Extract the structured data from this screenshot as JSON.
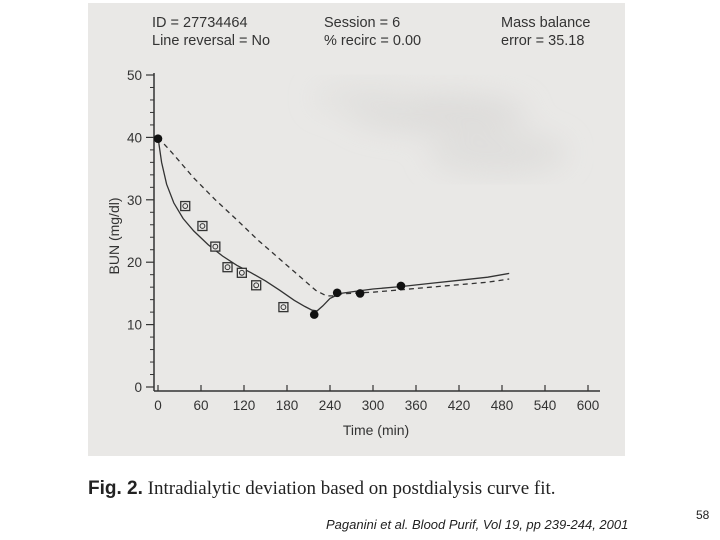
{
  "header": {
    "id_line": "ID = 27734464",
    "line_reversal": "Line reversal = No",
    "session": "Session = 6",
    "recirc": "% recirc = 0.00",
    "mass_balance": "Mass balance",
    "mass_balance_error": "error = 35.18"
  },
  "caption": {
    "label": "Fig. 2.",
    "text": "Intradialytic deviation based on postdialysis curve fit."
  },
  "citation": "Paganini et al. Blood Purif, Vol 19, pp 239-244, 2001",
  "page_number": "58",
  "chart_data": {
    "type": "line",
    "title": "",
    "xlabel": "Time (min)",
    "ylabel": "BUN (mg/dl)",
    "xlim": [
      0,
      600
    ],
    "ylim": [
      0,
      50
    ],
    "x_ticks": [
      0,
      60,
      120,
      180,
      240,
      300,
      360,
      420,
      480,
      540,
      600
    ],
    "y_ticks": [
      0,
      10,
      20,
      30,
      40,
      50
    ],
    "grid": false,
    "colors": {
      "ink": "#333333",
      "panel": "#e9e8e6"
    },
    "series": [
      {
        "name": "solid fit",
        "style": "solid",
        "points": [
          [
            0,
            40
          ],
          [
            5,
            36
          ],
          [
            12,
            32.5
          ],
          [
            22,
            29.5
          ],
          [
            35,
            27
          ],
          [
            50,
            25
          ],
          [
            70,
            22.8
          ],
          [
            90,
            21
          ],
          [
            110,
            19.5
          ],
          [
            130,
            18.3
          ],
          [
            150,
            17
          ],
          [
            170,
            15.5
          ],
          [
            190,
            13.9
          ],
          [
            205,
            12.9
          ],
          [
            215,
            12.3
          ],
          [
            222,
            12.2
          ],
          [
            230,
            13
          ],
          [
            240,
            14.2
          ],
          [
            255,
            15
          ],
          [
            280,
            15.4
          ],
          [
            300,
            15.7
          ],
          [
            340,
            16.1
          ],
          [
            380,
            16.6
          ],
          [
            420,
            17.1
          ],
          [
            460,
            17.6
          ],
          [
            490,
            18.2
          ]
        ]
      },
      {
        "name": "dashed fit",
        "style": "dashed",
        "points": [
          [
            0,
            40
          ],
          [
            20,
            37.5
          ],
          [
            50,
            33.5
          ],
          [
            80,
            30
          ],
          [
            110,
            26.8
          ],
          [
            140,
            23.5
          ],
          [
            170,
            20.5
          ],
          [
            200,
            17.5
          ],
          [
            220,
            15.5
          ],
          [
            235,
            14.6
          ],
          [
            245,
            14.6
          ],
          [
            255,
            14.9
          ],
          [
            280,
            15.1
          ],
          [
            300,
            15.2
          ],
          [
            340,
            15.6
          ],
          [
            380,
            16
          ],
          [
            420,
            16.4
          ],
          [
            460,
            16.8
          ],
          [
            490,
            17.3
          ]
        ]
      },
      {
        "name": "intradialytic samples",
        "style": "open-square-marker",
        "points": [
          [
            38,
            29
          ],
          [
            62,
            25.8
          ],
          [
            80,
            22.5
          ],
          [
            97,
            19.2
          ],
          [
            117,
            18.3
          ],
          [
            137,
            16.3
          ],
          [
            175,
            12.8
          ]
        ]
      },
      {
        "name": "postdialysis samples",
        "style": "filled-circle-marker",
        "points": [
          [
            0,
            39.8
          ],
          [
            218,
            11.6
          ],
          [
            250,
            15.1
          ],
          [
            282,
            15
          ],
          [
            339,
            16.2
          ]
        ]
      }
    ]
  }
}
